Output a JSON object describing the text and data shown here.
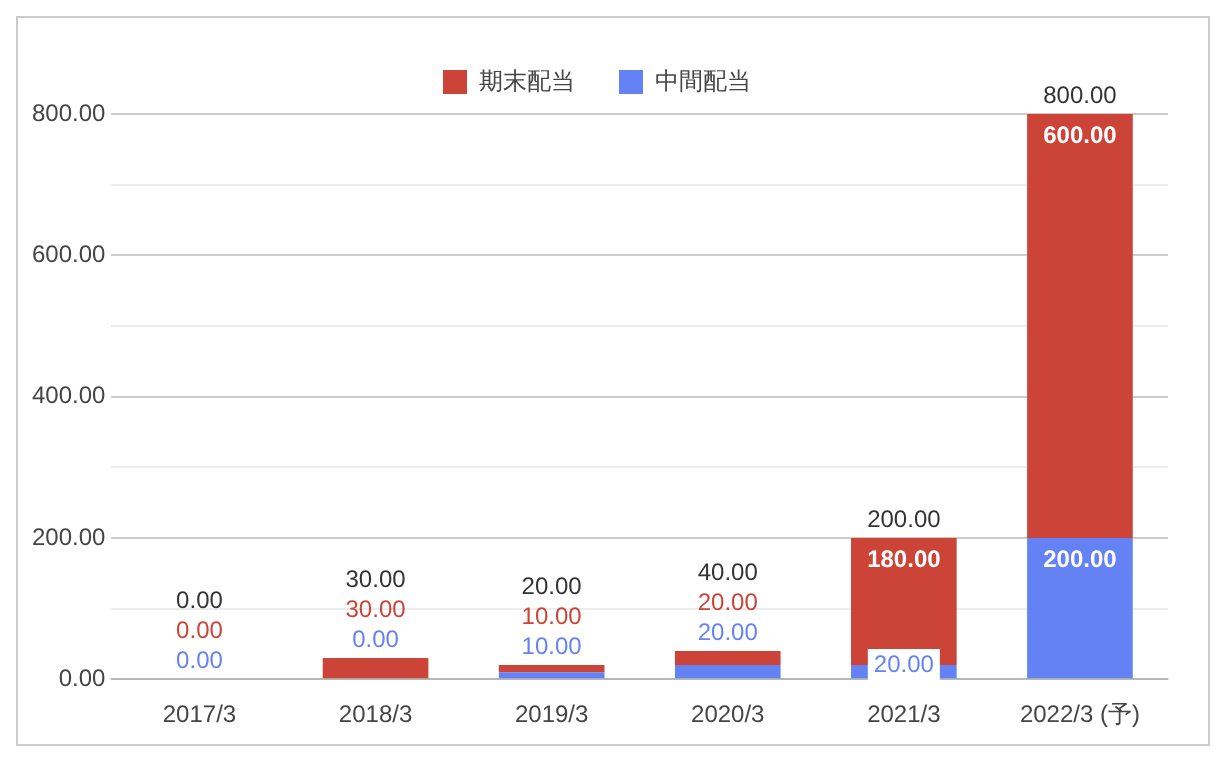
{
  "chart_data": {
    "type": "bar",
    "stacked": true,
    "categories": [
      "2017/3",
      "2018/3",
      "2019/3",
      "2020/3",
      "2021/3",
      "2022/3 (予)"
    ],
    "series": [
      {
        "name": "中間配当",
        "color": "#6582f5",
        "values": [
          0,
          0,
          10,
          20,
          20,
          200
        ],
        "value_labels": [
          "0.00",
          "0.00",
          "10.00",
          "20.00",
          "20.00",
          "200.00"
        ]
      },
      {
        "name": "期末配当",
        "color": "#cc4438",
        "values": [
          0,
          30,
          10,
          20,
          180,
          600
        ],
        "value_labels": [
          "0.00",
          "30.00",
          "10.00",
          "20.00",
          "180.00",
          "600.00"
        ]
      }
    ],
    "totals": [
      "0.00",
      "30.00",
      "20.00",
      "40.00",
      "200.00",
      "800.00"
    ],
    "ylim": [
      0,
      800
    ],
    "yticks": [
      {
        "value": 0,
        "label": "0.00"
      },
      {
        "value": 100,
        "label": null
      },
      {
        "value": 200,
        "label": "200.00"
      },
      {
        "value": 300,
        "label": null
      },
      {
        "value": 400,
        "label": "400.00"
      },
      {
        "value": 500,
        "label": null
      },
      {
        "value": 600,
        "label": "600.00"
      },
      {
        "value": 700,
        "label": null
      },
      {
        "value": 800,
        "label": "800.00"
      }
    ],
    "grid": "y",
    "legend": "top"
  }
}
